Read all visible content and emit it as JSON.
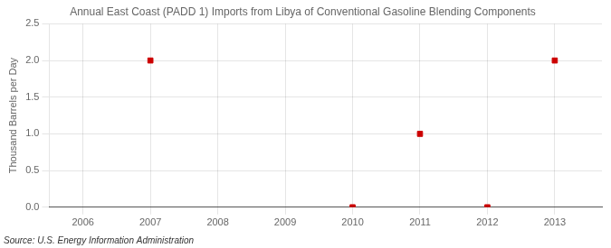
{
  "chart_data": {
    "type": "scatter",
    "title": "Annual East Coast (PADD 1) Imports from Libya of Conventional Gasoline Blending Components",
    "ylabel": "Thousand Barrels per Day",
    "annotation": "Source: U.S. Energy Information Administration",
    "x": [
      2007,
      2010,
      2011,
      2012,
      2013
    ],
    "values": [
      2.0,
      0.0,
      1.0,
      0.0,
      2.0
    ],
    "color": "#cc0000",
    "marker": "square",
    "xlim": [
      2005.5,
      2013.7
    ],
    "ylim": [
      0,
      2.5
    ],
    "xticks": [
      2006,
      2007,
      2008,
      2009,
      2010,
      2011,
      2012,
      2013
    ],
    "yticks": [
      {
        "value": 0,
        "label": "0.0"
      },
      0.5,
      {
        "value": 1,
        "label": "1.0"
      },
      1.5,
      {
        "value": 2,
        "label": "2.0"
      },
      2.5
    ],
    "grid": true
  }
}
